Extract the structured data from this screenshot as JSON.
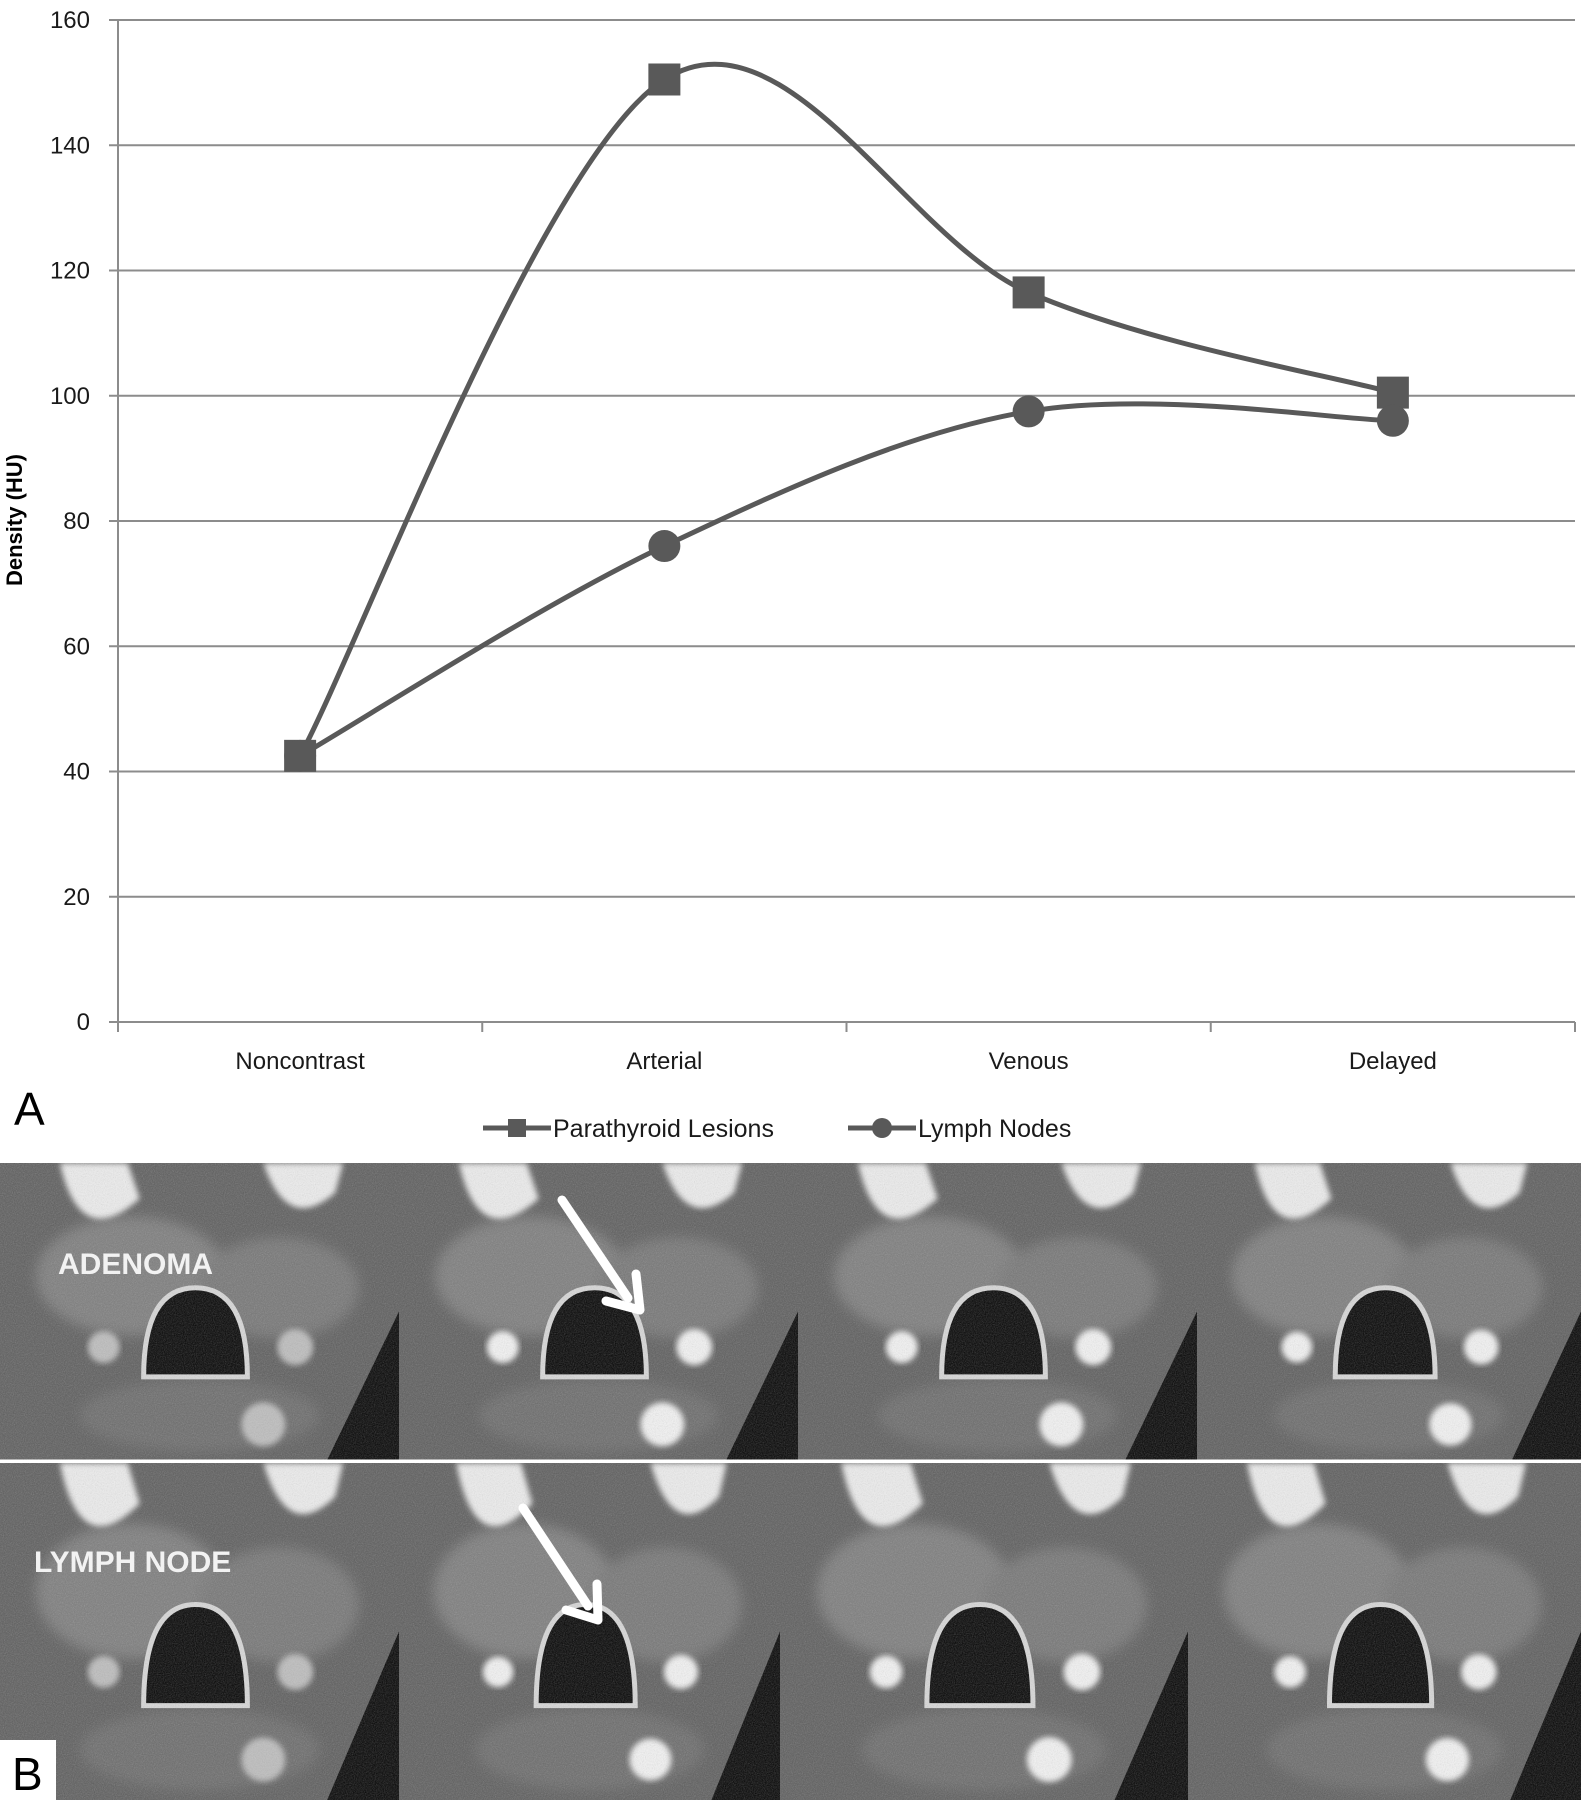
{
  "chart_data": {
    "type": "line",
    "categories": [
      "Noncontrast",
      "Arterial",
      "Venous",
      "Delayed"
    ],
    "series": [
      {
        "name": "Parathyroid Lesions",
        "marker": "square",
        "values": [
          42.5,
          150.5,
          116.5,
          100.5
        ]
      },
      {
        "name": "Lymph Nodes",
        "marker": "circle",
        "values": [
          42.5,
          76,
          97.5,
          96
        ]
      }
    ],
    "ylabel": "Density (HU)",
    "ylim": [
      0,
      160
    ],
    "yticks": [
      0,
      20,
      40,
      60,
      80,
      100,
      120,
      140,
      160
    ],
    "grid": true,
    "legend_position": "bottom",
    "smooth": true,
    "line_color": "#595959"
  },
  "panel_labels": {
    "a": "A",
    "b": "B"
  },
  "ct_images": {
    "row_captions": [
      "ADENOMA",
      "LYMPH NODE"
    ],
    "phases_per_row": 4
  }
}
